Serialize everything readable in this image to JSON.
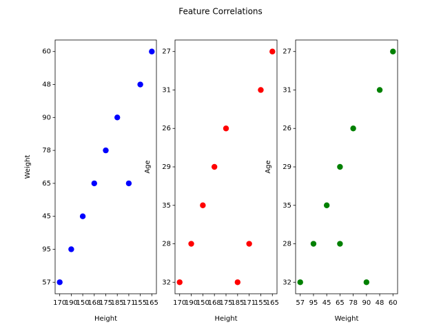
{
  "title": "Feature Correlations",
  "chart_data": [
    {
      "type": "scatter",
      "x_label": "Height",
      "y_label": "Weight",
      "color": "#0000ff",
      "xcategories": [
        170,
        190,
        150,
        168,
        175,
        185,
        171,
        155,
        165
      ],
      "ycategories": [
        57,
        95,
        45,
        65,
        78,
        90,
        48,
        60
      ],
      "x": [
        170,
        190,
        150,
        168,
        175,
        185,
        171,
        155,
        165
      ],
      "y": [
        57,
        95,
        45,
        65,
        78,
        90,
        65,
        48,
        60
      ]
    },
    {
      "type": "scatter",
      "x_label": "Height",
      "y_label": "Age",
      "color": "#ff0000",
      "xcategories": [
        170,
        190,
        150,
        168,
        175,
        185,
        171,
        155,
        165
      ],
      "ycategories": [
        32,
        28,
        35,
        29,
        26,
        31,
        27
      ],
      "x": [
        170,
        190,
        150,
        168,
        175,
        185,
        171,
        155,
        165
      ],
      "y": [
        32,
        28,
        35,
        29,
        26,
        32,
        28,
        31,
        27
      ]
    },
    {
      "type": "scatter",
      "x_label": "Weight",
      "y_label": "Age",
      "color": "#008000",
      "xcategories": [
        57,
        95,
        45,
        65,
        78,
        90,
        48,
        60
      ],
      "ycategories": [
        32,
        28,
        35,
        29,
        26,
        31,
        27
      ],
      "x": [
        57,
        95,
        45,
        65,
        78,
        90,
        65,
        48,
        60
      ],
      "y": [
        32,
        28,
        35,
        29,
        26,
        32,
        28,
        31,
        27
      ]
    }
  ]
}
